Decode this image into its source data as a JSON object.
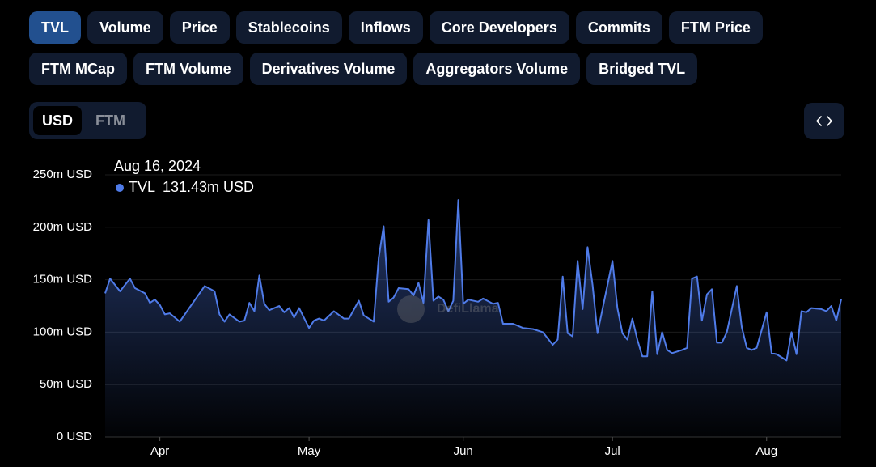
{
  "tabs": [
    "TVL",
    "Volume",
    "Price",
    "Stablecoins",
    "Inflows",
    "Core Developers",
    "Commits",
    "FTM Price",
    "FTM MCap",
    "FTM Volume",
    "Derivatives Volume",
    "Aggregators Volume",
    "Bridged TVL"
  ],
  "denomination": [
    "USD",
    "FTM"
  ],
  "watermark": "DefiLlama",
  "chart_data": {
    "type": "area",
    "tooltip": {
      "date": "Aug 16, 2024",
      "value": "131.43m USD"
    },
    "x": [
      "2024-03-21",
      "2024-03-22",
      "2024-03-24",
      "2024-03-26",
      "2024-03-27",
      "2024-03-29",
      "2024-03-30",
      "2024-03-31",
      "2024-04-01",
      "2024-04-02",
      "2024-04-03",
      "2024-04-05",
      "2024-04-10",
      "2024-04-12",
      "2024-04-13",
      "2024-04-14",
      "2024-04-15",
      "2024-04-17",
      "2024-04-18",
      "2024-04-19",
      "2024-04-20",
      "2024-04-21",
      "2024-04-22",
      "2024-04-23",
      "2024-04-25",
      "2024-04-26",
      "2024-04-27",
      "2024-04-28",
      "2024-04-29",
      "2024-05-01",
      "2024-05-02",
      "2024-05-03",
      "2024-05-04",
      "2024-05-06",
      "2024-05-08",
      "2024-05-09",
      "2024-05-11",
      "2024-05-12",
      "2024-05-14",
      "2024-05-15",
      "2024-05-16",
      "2024-05-17",
      "2024-05-18",
      "2024-05-19",
      "2024-05-21",
      "2024-05-22",
      "2024-05-23",
      "2024-05-24",
      "2024-05-25",
      "2024-05-26",
      "2024-05-27",
      "2024-05-28",
      "2024-05-29",
      "2024-05-30",
      "2024-05-31",
      "2024-06-01",
      "2024-06-02",
      "2024-06-04",
      "2024-06-05",
      "2024-06-07",
      "2024-06-08",
      "2024-06-09",
      "2024-06-11",
      "2024-06-13",
      "2024-06-15",
      "2024-06-17",
      "2024-06-19",
      "2024-06-20",
      "2024-06-21",
      "2024-06-22",
      "2024-06-23",
      "2024-06-24",
      "2024-06-25",
      "2024-06-26",
      "2024-06-27",
      "2024-06-28",
      "2024-07-01",
      "2024-07-02",
      "2024-07-03",
      "2024-07-04",
      "2024-07-05",
      "2024-07-06",
      "2024-07-07",
      "2024-07-08",
      "2024-07-09",
      "2024-07-10",
      "2024-07-11",
      "2024-07-12",
      "2024-07-13",
      "2024-07-15",
      "2024-07-16",
      "2024-07-17",
      "2024-07-18",
      "2024-07-19",
      "2024-07-20",
      "2024-07-21",
      "2024-07-22",
      "2024-07-23",
      "2024-07-24",
      "2024-07-26",
      "2024-07-27",
      "2024-07-28",
      "2024-07-29",
      "2024-07-30",
      "2024-08-01",
      "2024-08-02",
      "2024-08-03",
      "2024-08-05",
      "2024-08-06",
      "2024-08-07",
      "2024-08-08",
      "2024-08-09",
      "2024-08-10",
      "2024-08-12",
      "2024-08-13",
      "2024-08-14",
      "2024-08-15",
      "2024-08-16"
    ],
    "series": [
      {
        "name": "TVL",
        "color": "#4f7be8",
        "values": [
          137,
          151,
          139,
          151,
          142,
          137,
          128,
          131,
          126,
          117,
          118,
          110,
          144,
          139,
          117,
          110,
          117,
          110,
          111,
          128,
          120,
          154,
          127,
          121,
          125,
          119,
          123,
          114,
          123,
          104,
          111,
          113,
          111,
          120,
          113,
          113,
          130,
          116,
          110,
          171,
          201,
          129,
          133,
          142,
          141,
          135,
          147,
          128,
          207,
          130,
          134,
          131,
          120,
          130,
          226,
          127,
          131,
          129,
          132,
          127,
          128,
          108,
          108,
          104,
          103,
          100,
          88,
          93,
          153,
          99,
          96,
          168,
          122,
          181,
          145,
          99,
          168,
          123,
          99,
          93,
          113,
          93,
          77,
          77,
          139,
          79,
          100,
          83,
          80,
          83,
          85,
          151,
          153,
          111,
          136,
          141,
          90,
          90,
          100,
          144,
          105,
          85,
          83,
          85,
          119,
          80,
          79,
          73,
          100,
          79,
          120,
          119,
          123,
          122,
          120,
          125,
          111,
          131.43
        ]
      }
    ],
    "xlim": [
      "2024-03-21",
      "2024-08-16"
    ],
    "xticks": [
      {
        "value": "2024-04-01",
        "label": "Apr"
      },
      {
        "value": "2024-05-01",
        "label": "May"
      },
      {
        "value": "2024-06-01",
        "label": "Jun"
      },
      {
        "value": "2024-07-01",
        "label": "Jul"
      },
      {
        "value": "2024-08-01",
        "label": "Aug"
      }
    ],
    "ylim": [
      0,
      250
    ],
    "yticks": [
      {
        "value": 0,
        "label": "0 USD"
      },
      {
        "value": 50,
        "label": "50m USD"
      },
      {
        "value": 100,
        "label": "100m USD"
      },
      {
        "value": 150,
        "label": "150m USD"
      },
      {
        "value": 200,
        "label": "200m USD"
      },
      {
        "value": 250,
        "label": "250m USD"
      }
    ],
    "grid": true
  }
}
